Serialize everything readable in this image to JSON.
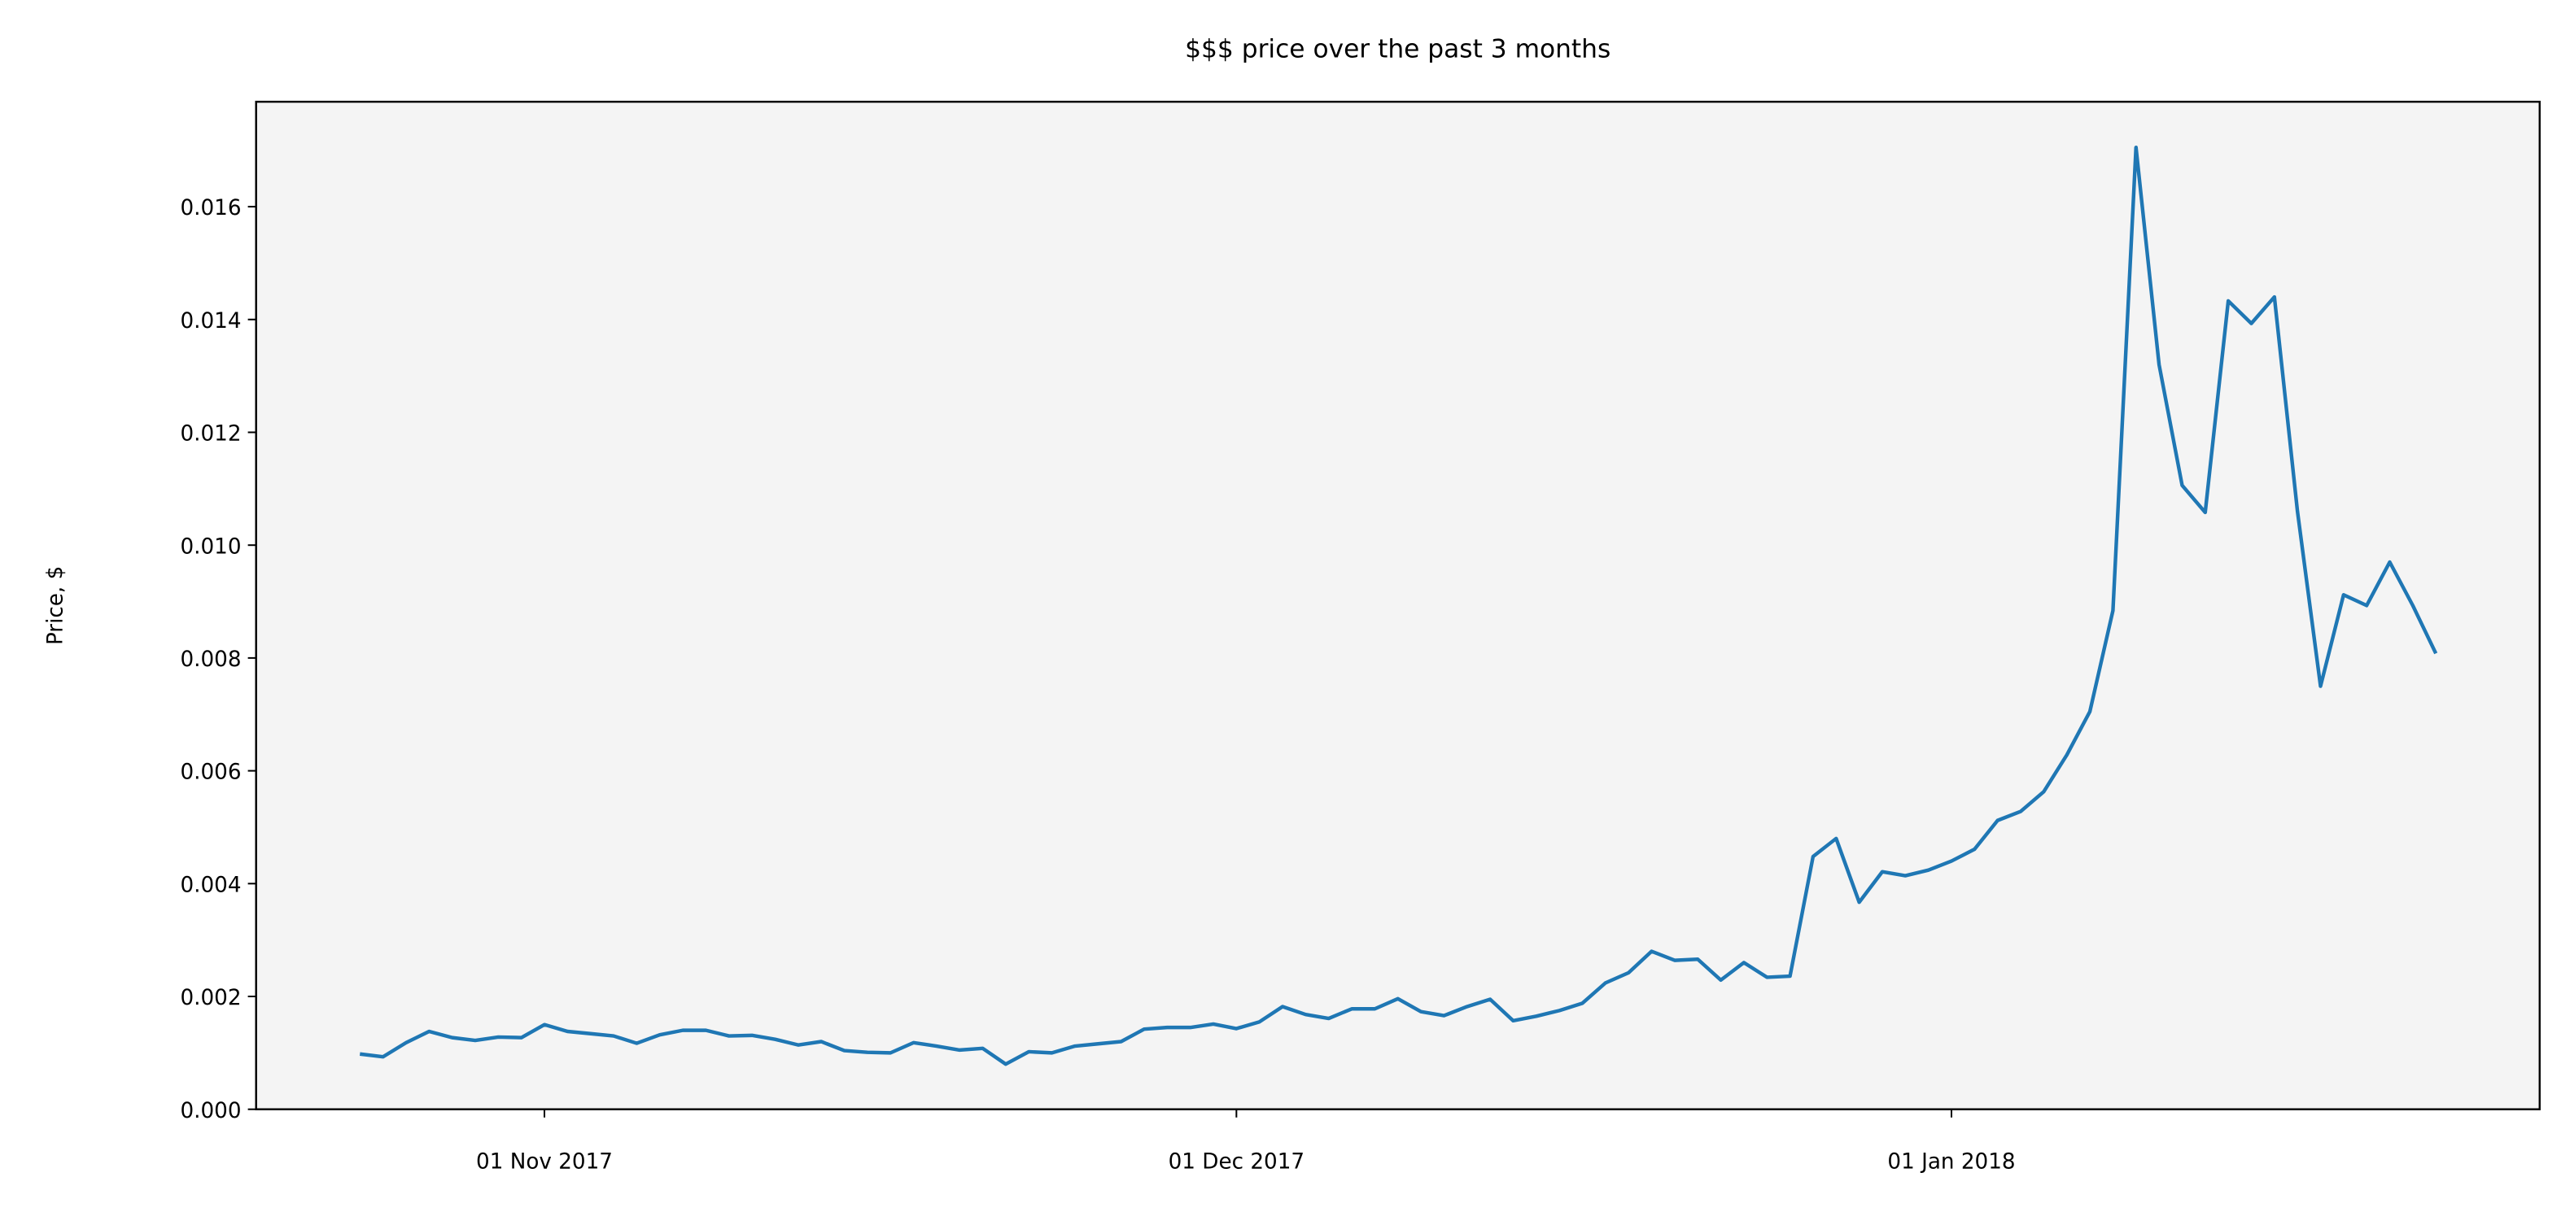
{
  "chart_data": {
    "type": "line",
    "title": "$$$ price over the past 3 months",
    "ylabel": "Price, $",
    "color": "#1f77b4",
    "x": [
      "2017-10-24",
      "2017-10-25",
      "2017-10-26",
      "2017-10-27",
      "2017-10-28",
      "2017-10-29",
      "2017-10-30",
      "2017-10-31",
      "2017-11-01",
      "2017-11-02",
      "2017-11-03",
      "2017-11-04",
      "2017-11-05",
      "2017-11-06",
      "2017-11-07",
      "2017-11-08",
      "2017-11-09",
      "2017-11-10",
      "2017-11-11",
      "2017-11-12",
      "2017-11-13",
      "2017-11-14",
      "2017-11-15",
      "2017-11-16",
      "2017-11-17",
      "2017-11-18",
      "2017-11-19",
      "2017-11-20",
      "2017-11-21",
      "2017-11-22",
      "2017-11-23",
      "2017-11-24",
      "2017-11-25",
      "2017-11-26",
      "2017-11-27",
      "2017-11-28",
      "2017-11-29",
      "2017-11-30",
      "2017-12-01",
      "2017-12-02",
      "2017-12-03",
      "2017-12-04",
      "2017-12-05",
      "2017-12-06",
      "2017-12-07",
      "2017-12-08",
      "2017-12-09",
      "2017-12-10",
      "2017-12-11",
      "2017-12-12",
      "2017-12-13",
      "2017-12-14",
      "2017-12-15",
      "2017-12-16",
      "2017-12-17",
      "2017-12-18",
      "2017-12-19",
      "2017-12-20",
      "2017-12-21",
      "2017-12-22",
      "2017-12-23",
      "2017-12-24",
      "2017-12-25",
      "2017-12-26",
      "2017-12-27",
      "2017-12-28",
      "2017-12-29",
      "2017-12-30",
      "2017-12-31",
      "2018-01-01",
      "2018-01-02",
      "2018-01-03",
      "2018-01-04",
      "2018-01-05",
      "2018-01-06",
      "2018-01-07",
      "2018-01-08",
      "2018-01-09",
      "2018-01-10",
      "2018-01-11",
      "2018-01-12",
      "2018-01-13",
      "2018-01-14",
      "2018-01-15",
      "2018-01-16",
      "2018-01-17",
      "2018-01-18",
      "2018-01-19",
      "2018-01-20",
      "2018-01-21",
      "2018-01-22"
    ],
    "values": [
      0.00098,
      0.00093,
      0.00118,
      0.00138,
      0.00127,
      0.00122,
      0.00128,
      0.00127,
      0.0015,
      0.00138,
      0.00134,
      0.0013,
      0.00117,
      0.00132,
      0.0014,
      0.0014,
      0.0013,
      0.00131,
      0.00124,
      0.00114,
      0.0012,
      0.00104,
      0.00101,
      0.001,
      0.00118,
      0.00112,
      0.00105,
      0.00108,
      0.0008,
      0.00102,
      0.001,
      0.00112,
      0.00116,
      0.0012,
      0.00142,
      0.00145,
      0.00145,
      0.00151,
      0.00143,
      0.00155,
      0.00182,
      0.00168,
      0.00161,
      0.00178,
      0.00178,
      0.00196,
      0.00173,
      0.00166,
      0.00182,
      0.00195,
      0.00157,
      0.00165,
      0.00175,
      0.00188,
      0.00224,
      0.00242,
      0.0028,
      0.00264,
      0.00266,
      0.00229,
      0.0026,
      0.00234,
      0.00236,
      0.00448,
      0.0048,
      0.00367,
      0.00421,
      0.00414,
      0.00424,
      0.0044,
      0.00461,
      0.00512,
      0.00528,
      0.00563,
      0.00628,
      0.00705,
      0.00884,
      0.01705,
      0.0132,
      0.01106,
      0.01058,
      0.01433,
      0.01393,
      0.0144,
      0.0106,
      0.0075,
      0.00912,
      0.00893,
      0.0097,
      0.00893,
      0.00808
    ],
    "xlim": [
      "2017-10-19T12:00",
      "2018-01-26T12:00"
    ],
    "xticks": [
      {
        "value": "2017-11-01",
        "label": "01 Nov 2017"
      },
      {
        "value": "2017-12-01",
        "label": "01 Dec 2017"
      },
      {
        "value": "2018-01-01",
        "label": "01 Jan 2018"
      }
    ],
    "ylim": [
      0,
      0.01786
    ],
    "yticks": [
      {
        "value": 0,
        "label": "0.000"
      },
      0.002,
      0.004,
      0.006,
      0.008,
      {
        "value": 0.01,
        "label": "0.010"
      },
      0.012,
      0.014,
      0.016
    ],
    "grid": false
  }
}
